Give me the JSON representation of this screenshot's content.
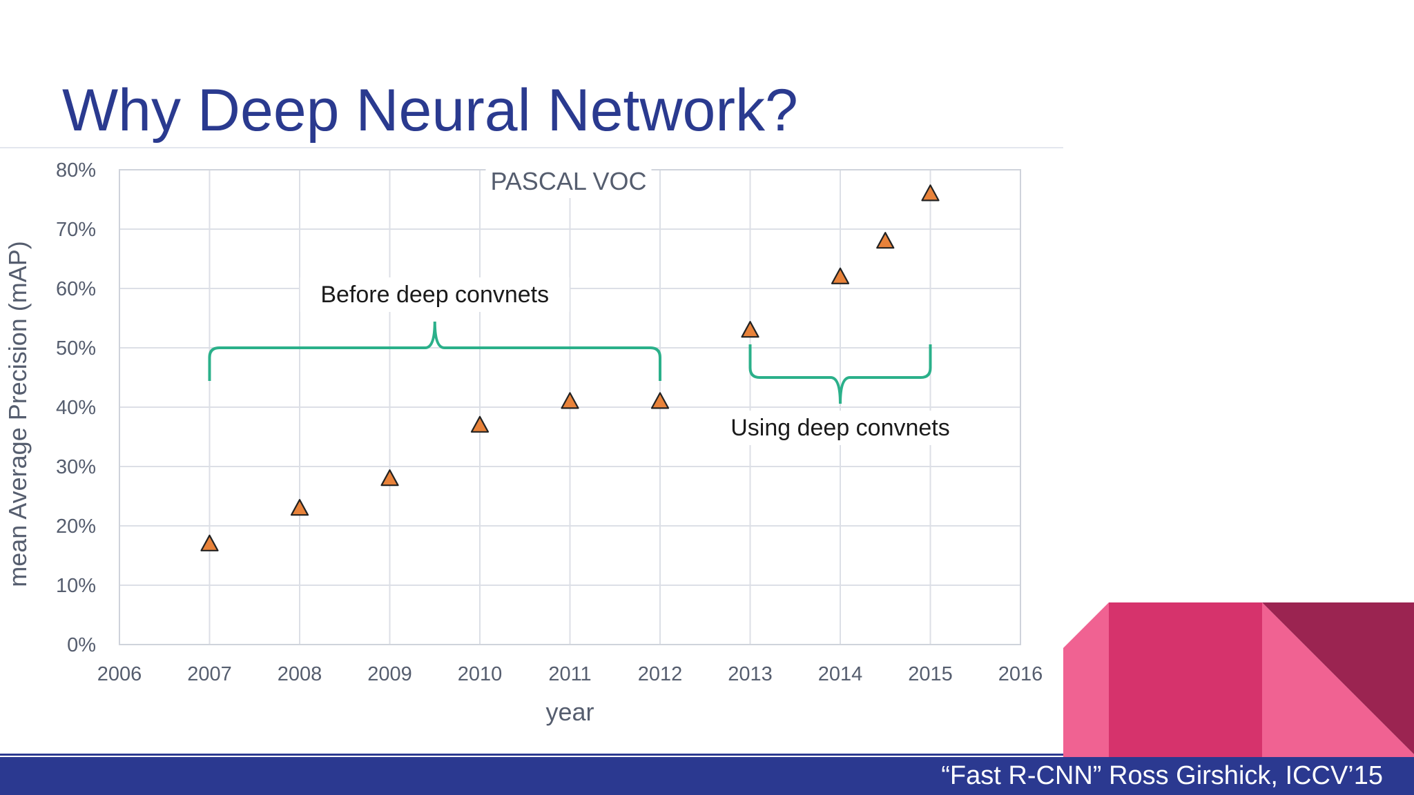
{
  "slide": {
    "title": "Why Deep Neural Network?",
    "citation": "“Fast R-CNN” Ross Girshick, ICCV’15"
  },
  "colors": {
    "title": "#2a3a8f",
    "footer_bar": "#2b3990",
    "marker_fill": "#e8823a",
    "bracket": "#2bb08a",
    "deco_pink_light": "#f06292",
    "deco_pink_mid": "#d6336c",
    "deco_maroon": "#9b2451"
  },
  "chart_data": {
    "type": "scatter",
    "title": "PASCAL VOC",
    "xlabel": "year",
    "ylabel": "mean Average Precision (mAP)",
    "xlim": [
      2006,
      2016
    ],
    "ylim": [
      0,
      80
    ],
    "x_ticks": [
      "2006",
      "2007",
      "2008",
      "2009",
      "2010",
      "2011",
      "2012",
      "2013",
      "2014",
      "2015",
      "2016"
    ],
    "y_ticks": [
      "0%",
      "10%",
      "20%",
      "30%",
      "40%",
      "50%",
      "60%",
      "70%",
      "80%"
    ],
    "grid": true,
    "marker": "triangle",
    "points": [
      {
        "x": 2007,
        "y": 17
      },
      {
        "x": 2008,
        "y": 23
      },
      {
        "x": 2009,
        "y": 28
      },
      {
        "x": 2010,
        "y": 37
      },
      {
        "x": 2011,
        "y": 41
      },
      {
        "x": 2012,
        "y": 41
      },
      {
        "x": 2013,
        "y": 53
      },
      {
        "x": 2014,
        "y": 62
      },
      {
        "x": 2014.5,
        "y": 68
      },
      {
        "x": 2015,
        "y": 76
      }
    ],
    "annotations": [
      {
        "text": "Before deep convnets",
        "x_start": 2007,
        "x_end": 2012,
        "y": 50,
        "side": "above"
      },
      {
        "text": "Using deep convnets",
        "x_start": 2013,
        "x_end": 2015,
        "y": 45,
        "side": "below"
      }
    ]
  }
}
